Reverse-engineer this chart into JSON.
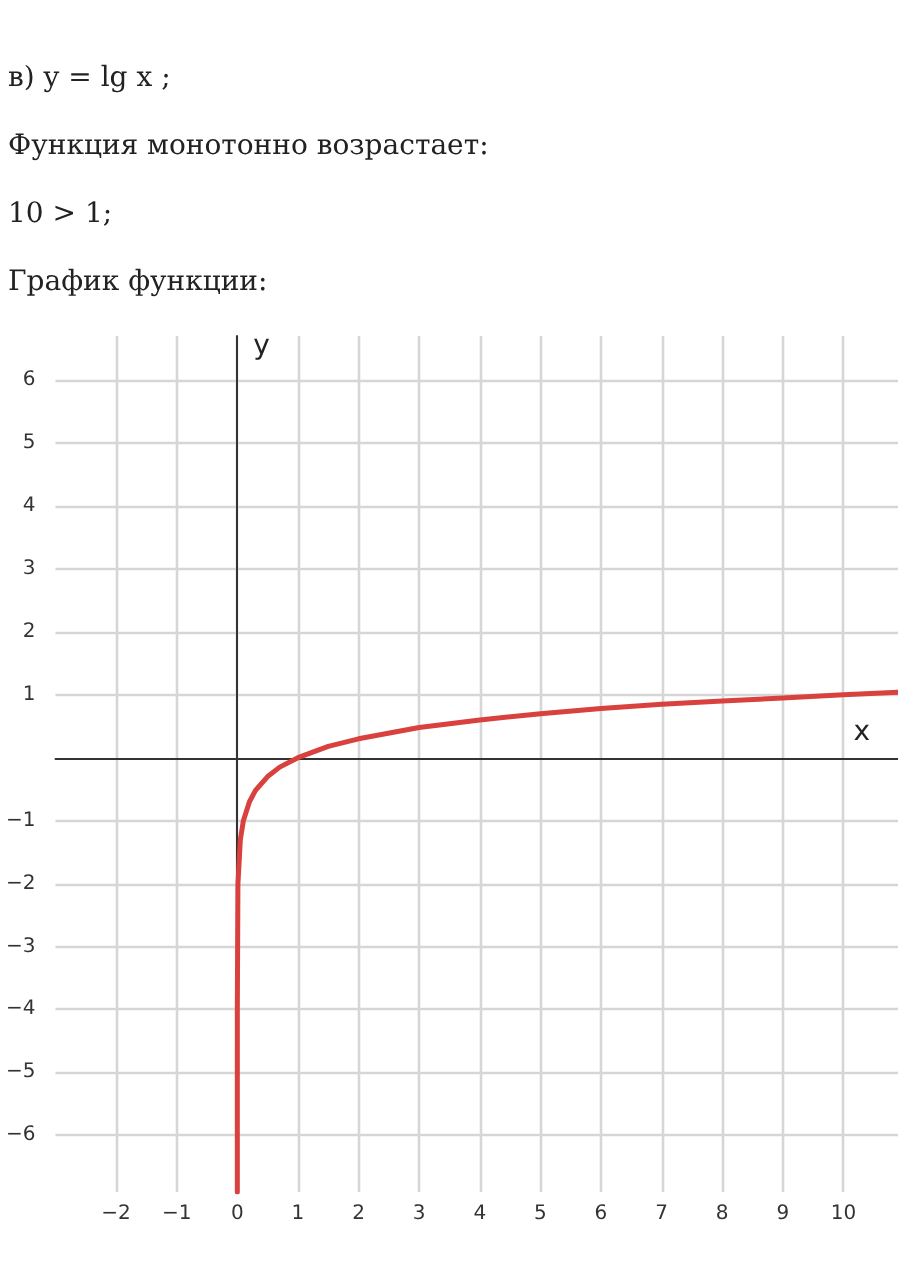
{
  "chart_data": {
    "type": "line",
    "title": "в) y = lg x ;",
    "annotations": [
      "Функция монотонно возрастает:",
      "10 > 1;",
      "График функции:"
    ],
    "xlabel": "x",
    "ylabel": "y",
    "series": [
      {
        "color": "#d9413f",
        "x": [
          1.3e-07,
          1e-06,
          0.0001,
          0.01,
          0.05,
          0.1,
          0.2,
          0.3,
          0.5,
          0.7,
          1,
          1.5,
          2,
          3,
          4,
          5,
          6,
          7,
          8,
          9,
          10,
          10.9
        ],
        "values": [
          -6.9,
          -6,
          -4,
          -2,
          -1.3,
          -1,
          -0.7,
          -0.52,
          -0.3,
          -0.15,
          0,
          0.18,
          0.3,
          0.48,
          0.6,
          0.7,
          0.78,
          0.85,
          0.9,
          0.95,
          1,
          1.04
        ]
      }
    ],
    "xlim": [
      -3,
      10.9
    ],
    "ylim": [
      -6.9,
      6.7
    ],
    "xticks": [
      -2,
      -1,
      0,
      1,
      2,
      3,
      4,
      5,
      6,
      7,
      8,
      9,
      10
    ],
    "yticks": [
      -6,
      -5,
      -4,
      -3,
      -2,
      -1,
      1,
      2,
      3,
      4,
      5,
      6
    ],
    "grid": true,
    "marker": "none",
    "line_style": "solid"
  }
}
